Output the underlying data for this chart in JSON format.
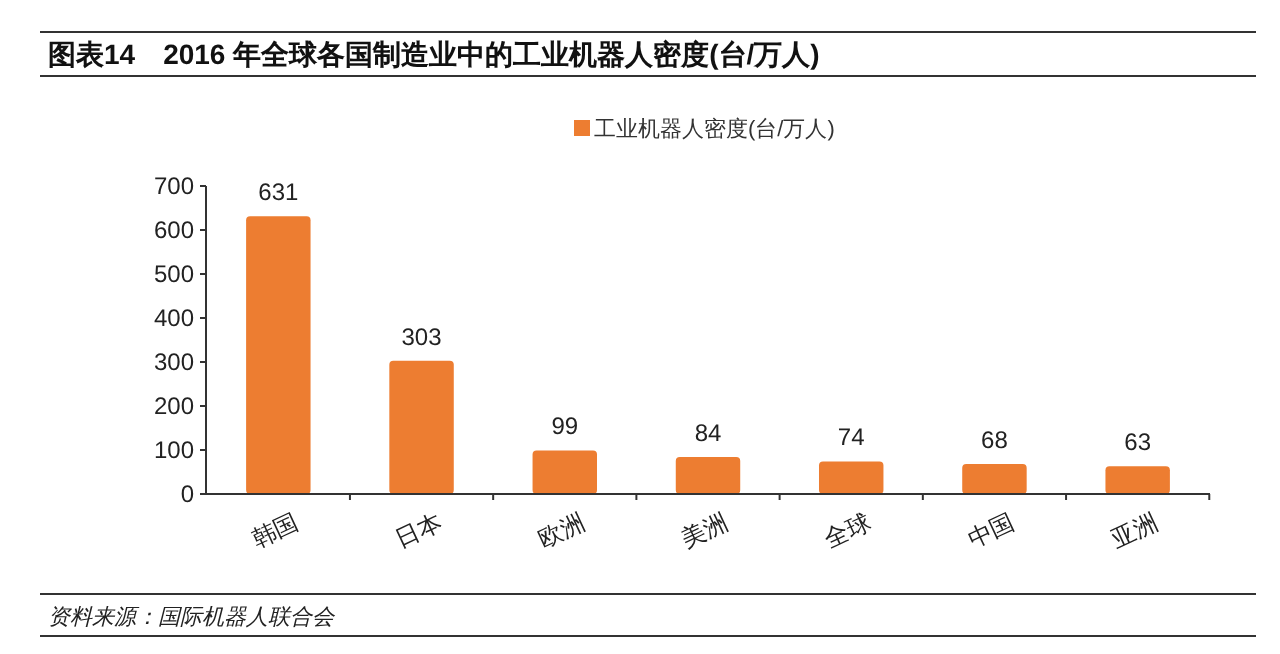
{
  "chart_data": {
    "type": "bar",
    "title": "图表14　2016 年全球各国制造业中的工业机器人密度(台/万人)",
    "categories": [
      "韩国",
      "日本",
      "欧洲",
      "美洲",
      "全球",
      "中国",
      "亚洲"
    ],
    "series": [
      {
        "name": "工业机器人密度(台/万人)",
        "color": "#ed7d31",
        "values": [
          631,
          303,
          99,
          84,
          74,
          68,
          63
        ]
      }
    ],
    "ylim": [
      0,
      700
    ],
    "yticks": [
      0,
      100,
      200,
      300,
      400,
      500,
      600,
      700
    ],
    "grid": false,
    "legend": "top",
    "data_labels": true,
    "annotations": [
      "资料来源：国际机器人联合会"
    ]
  }
}
